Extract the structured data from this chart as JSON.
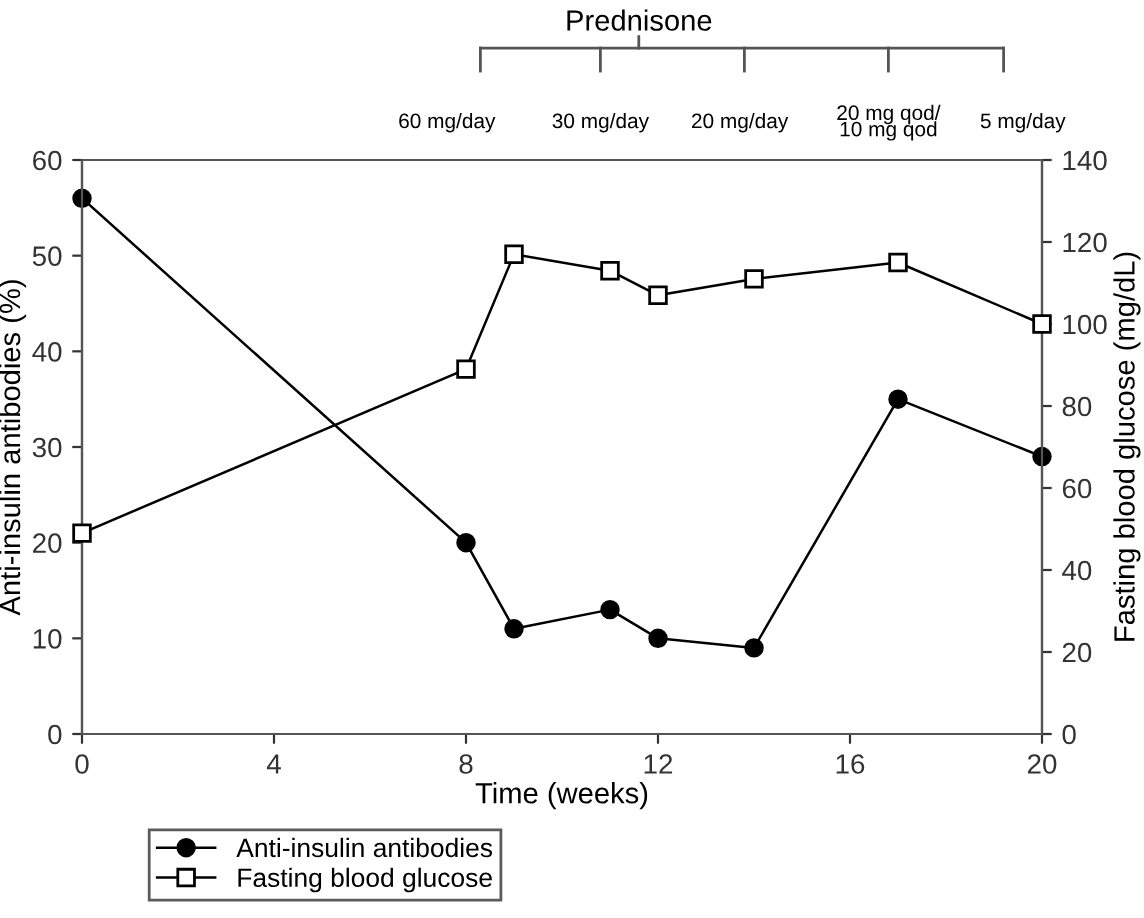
{
  "chart_data": {
    "type": "line",
    "xlabel": "Time (weeks)",
    "ylabel": "Anti-insulin antibodies (%)",
    "y2label": "Fasting blood glucose (mg/dL)",
    "xlim": [
      0,
      20
    ],
    "xticks": [
      0,
      4,
      8,
      12,
      16,
      20
    ],
    "ylim": [
      0,
      60
    ],
    "yticks": [
      0,
      10,
      20,
      30,
      40,
      50,
      60
    ],
    "y2lim": [
      0,
      140
    ],
    "y2ticks": [
      0,
      20,
      40,
      60,
      80,
      100,
      120,
      140
    ],
    "legend": "bottom left",
    "grid": false,
    "line_style": "solid",
    "annotations": [
      "Prednisone",
      "60 mg/day",
      "30 mg/day",
      "20 mg/day",
      "20 mg qod/\n10 mg qod",
      "5 mg/day"
    ],
    "series": [
      {
        "name": "Anti-insulin antibodies",
        "color": "#000000",
        "marker": "circle",
        "x": [
          0,
          8,
          9,
          11,
          12,
          14,
          17,
          20
        ],
        "values": [
          56,
          20,
          11,
          13,
          10,
          9,
          35,
          29
        ]
      },
      {
        "name": "Fasting blood glucose",
        "color": "#000000",
        "marker": "square",
        "axis": "y2",
        "x": [
          0,
          8,
          9,
          11,
          12,
          14,
          17,
          20
        ],
        "values": [
          49,
          89,
          117,
          113,
          107,
          111,
          115,
          100
        ]
      }
    ]
  }
}
